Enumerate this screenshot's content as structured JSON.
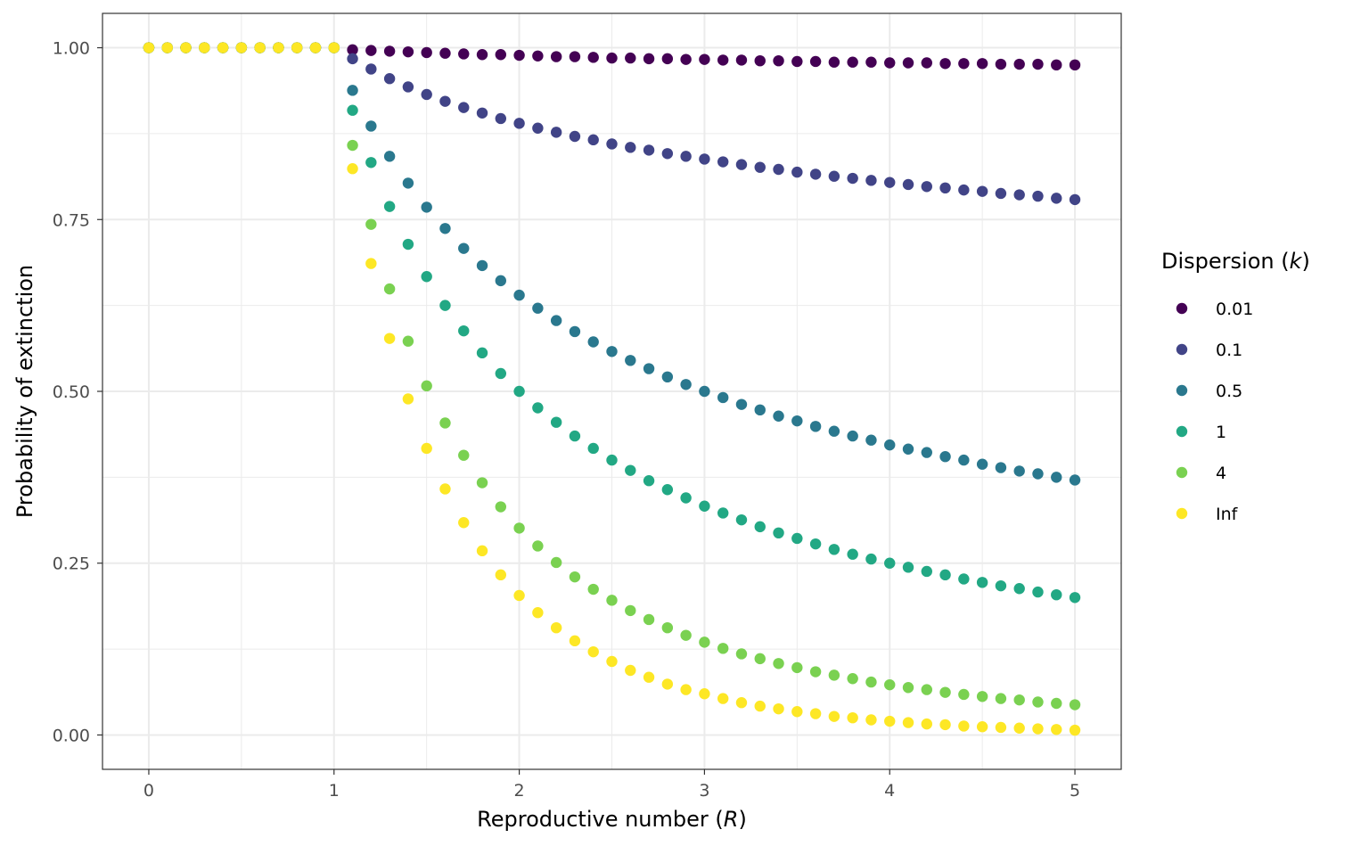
{
  "chart_data": {
    "type": "scatter",
    "xlabel": "Reproductive number (R)",
    "xlabel_parts": {
      "pre": "Reproductive number (",
      "italic": "R",
      "post": ")"
    },
    "ylabel": "Probability of extinction",
    "xlim": [
      -0.25,
      5.25
    ],
    "ylim": [
      -0.05,
      1.05
    ],
    "x_ticks": [
      0,
      1,
      2,
      3,
      4,
      5
    ],
    "x_tick_labels": [
      "0",
      "1",
      "2",
      "3",
      "4",
      "5"
    ],
    "y_ticks": [
      0,
      0.25,
      0.5,
      0.75,
      1.0
    ],
    "y_tick_labels": [
      "0.00",
      "0.25",
      "0.50",
      "0.75",
      "1.00"
    ],
    "grid": true,
    "legend": {
      "title": "Dispersion (k)",
      "title_parts": {
        "pre": "Dispersion (",
        "italic": "k",
        "post": ")"
      },
      "position": "right"
    },
    "x": [
      0,
      0.1,
      0.2,
      0.3,
      0.4,
      0.5,
      0.6,
      0.7,
      0.8,
      0.9,
      1.0,
      1.1,
      1.2,
      1.3,
      1.4,
      1.5,
      1.6,
      1.7,
      1.8,
      1.9,
      2.0,
      2.1,
      2.2,
      2.3,
      2.4,
      2.5,
      2.6,
      2.7,
      2.8,
      2.9,
      3.0,
      3.1,
      3.2,
      3.3,
      3.4,
      3.5,
      3.6,
      3.7,
      3.8,
      3.9,
      4.0,
      4.1,
      4.2,
      4.3,
      4.4,
      4.5,
      4.6,
      4.7,
      4.8,
      4.9,
      5.0
    ],
    "series": [
      {
        "name": "0.01",
        "color": "#440154",
        "values": [
          1,
          1,
          1,
          1,
          1,
          1,
          1,
          1,
          1,
          1,
          1,
          0.997,
          0.996,
          0.995,
          0.994,
          0.993,
          0.992,
          0.991,
          0.99,
          0.99,
          0.989,
          0.988,
          0.987,
          0.987,
          0.986,
          0.985,
          0.985,
          0.984,
          0.984,
          0.983,
          0.983,
          0.982,
          0.982,
          0.981,
          0.981,
          0.98,
          0.98,
          0.979,
          0.979,
          0.979,
          0.978,
          0.978,
          0.978,
          0.977,
          0.977,
          0.977,
          0.976,
          0.976,
          0.976,
          0.975,
          0.975
        ]
      },
      {
        "name": "0.1",
        "color": "#414487",
        "values": [
          1,
          1,
          1,
          1,
          1,
          1,
          1,
          1,
          1,
          1,
          1,
          0.984,
          0.969,
          0.955,
          0.943,
          0.932,
          0.922,
          0.913,
          0.905,
          0.897,
          0.89,
          0.883,
          0.877,
          0.871,
          0.866,
          0.86,
          0.855,
          0.851,
          0.846,
          0.842,
          0.838,
          0.834,
          0.83,
          0.826,
          0.823,
          0.819,
          0.816,
          0.813,
          0.81,
          0.807,
          0.804,
          0.801,
          0.798,
          0.796,
          0.793,
          0.791,
          0.788,
          0.786,
          0.784,
          0.781,
          0.779
        ]
      },
      {
        "name": "0.5",
        "color": "#2a788e",
        "values": [
          1,
          1,
          1,
          1,
          1,
          1,
          1,
          1,
          1,
          1,
          1,
          0.938,
          0.886,
          0.842,
          0.803,
          0.768,
          0.737,
          0.708,
          0.683,
          0.661,
          0.64,
          0.621,
          0.603,
          0.587,
          0.572,
          0.558,
          0.545,
          0.533,
          0.521,
          0.51,
          0.5,
          0.491,
          0.481,
          0.473,
          0.464,
          0.457,
          0.449,
          0.442,
          0.435,
          0.429,
          0.422,
          0.416,
          0.411,
          0.405,
          0.4,
          0.394,
          0.389,
          0.384,
          0.38,
          0.375,
          0.371
        ]
      },
      {
        "name": "1",
        "color": "#22a884",
        "values": [
          1,
          1,
          1,
          1,
          1,
          1,
          1,
          1,
          1,
          1,
          1,
          0.909,
          0.833,
          0.769,
          0.714,
          0.667,
          0.625,
          0.588,
          0.556,
          0.526,
          0.5,
          0.476,
          0.455,
          0.435,
          0.417,
          0.4,
          0.385,
          0.37,
          0.357,
          0.345,
          0.333,
          0.323,
          0.313,
          0.303,
          0.294,
          0.286,
          0.278,
          0.27,
          0.263,
          0.256,
          0.25,
          0.244,
          0.238,
          0.233,
          0.227,
          0.222,
          0.217,
          0.213,
          0.208,
          0.204,
          0.2
        ]
      },
      {
        "name": "4",
        "color": "#7ad151",
        "values": [
          1,
          1,
          1,
          1,
          1,
          1,
          1,
          1,
          1,
          1,
          1,
          0.858,
          0.743,
          0.649,
          0.573,
          0.508,
          0.454,
          0.407,
          0.367,
          0.332,
          0.301,
          0.275,
          0.251,
          0.23,
          0.212,
          0.196,
          0.181,
          0.168,
          0.156,
          0.145,
          0.135,
          0.126,
          0.118,
          0.111,
          0.104,
          0.098,
          0.092,
          0.087,
          0.082,
          0.077,
          0.073,
          0.069,
          0.066,
          0.062,
          0.059,
          0.056,
          0.053,
          0.051,
          0.048,
          0.046,
          0.044
        ]
      },
      {
        "name": "Inf",
        "color": "#fde725",
        "values": [
          1,
          1,
          1,
          1,
          1,
          1,
          1,
          1,
          1,
          1,
          1,
          0.824,
          0.686,
          0.577,
          0.489,
          0.417,
          0.358,
          0.309,
          0.268,
          0.233,
          0.203,
          0.178,
          0.156,
          0.137,
          0.121,
          0.107,
          0.094,
          0.084,
          0.074,
          0.066,
          0.06,
          0.053,
          0.047,
          0.042,
          0.038,
          0.034,
          0.031,
          0.027,
          0.025,
          0.022,
          0.02,
          0.018,
          0.016,
          0.015,
          0.013,
          0.012,
          0.011,
          0.01,
          0.009,
          0.008,
          0.007
        ]
      }
    ]
  }
}
